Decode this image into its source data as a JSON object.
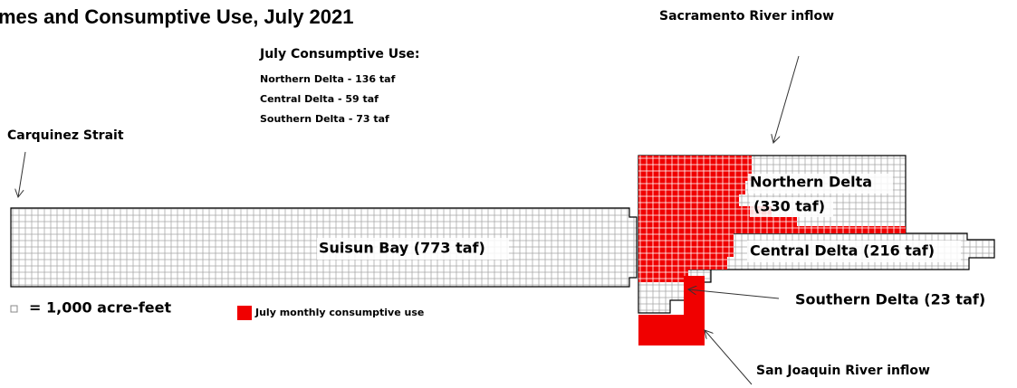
{
  "header": {
    "title": "mes and Consumptive Use, July 2021"
  },
  "consumptive_use": {
    "heading": "July Consumptive Use:",
    "lines": [
      "Northern Delta - 136 taf",
      "Central Delta - 59 taf",
      "Southern Delta - 73 taf"
    ]
  },
  "labels": {
    "carquinez": "Carquinez Strait",
    "sacramento": "Sacramento River inflow",
    "northern_name": "Northern Delta",
    "northern_volume": "(330 taf)",
    "suisun": "Suisun Bay (773 taf)",
    "central": "Central Delta (216 taf)",
    "southern": "Southern Delta (23 taf)",
    "san_joaquin": "San Joaquin River inflow"
  },
  "legend": {
    "square": "= 1,000 acre-feet",
    "red": "July monthly consumptive use"
  }
}
